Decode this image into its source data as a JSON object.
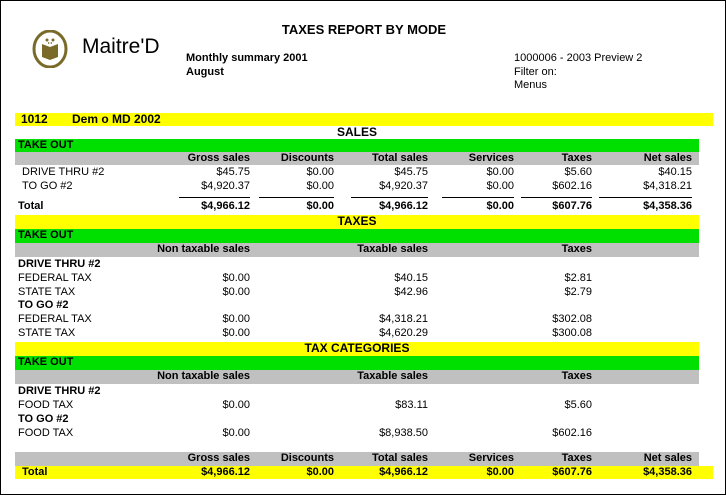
{
  "report": {
    "title": "TAXES REPORT BY MODE",
    "logo_text": "Maitre'D",
    "subtitle": "Monthly summary 2001",
    "period": "August",
    "ref": "1000006 - 2003  Preview 2",
    "filter_label": "Filter on:",
    "filter_value": "Menus",
    "store_id": "1012",
    "store_name": "Dem o MD 2002"
  },
  "colors": {
    "section": "#ffff00",
    "mode": "#00e000",
    "header": "#c0c0c0",
    "logo": "#7a6a2a"
  },
  "sales": {
    "title": "SALES",
    "mode": "TAKE OUT",
    "columns": [
      "Gross sales",
      "Discounts",
      "Total sales",
      "Services",
      "Taxes",
      "Net sales"
    ],
    "rows": [
      {
        "name": "DRIVE THRU #2",
        "values": [
          "$45.75",
          "$0.00",
          "$45.75",
          "$0.00",
          "$5.60",
          "$40.15"
        ]
      },
      {
        "name": "TO GO #2",
        "values": [
          "$4,920.37",
          "$0.00",
          "$4,920.37",
          "$0.00",
          "$602.16",
          "$4,318.21"
        ]
      }
    ],
    "total": {
      "label": "Total",
      "values": [
        "$4,966.12",
        "$0.00",
        "$4,966.12",
        "$0.00",
        "$607.76",
        "$4,358.36"
      ]
    }
  },
  "taxes": {
    "title": "TAXES",
    "mode": "TAKE OUT",
    "columns": [
      "Non taxable sales",
      "Taxable sales",
      "Taxes"
    ],
    "groups": [
      {
        "name": "DRIVE THRU #2",
        "rows": [
          {
            "name": "FEDERAL TAX",
            "values": [
              "$0.00",
              "$40.15",
              "$2.81"
            ]
          },
          {
            "name": "STATE TAX",
            "values": [
              "$0.00",
              "$42.96",
              "$2.79"
            ]
          }
        ]
      },
      {
        "name": "TO GO #2",
        "rows": [
          {
            "name": "FEDERAL TAX",
            "values": [
              "$0.00",
              "$4,318.21",
              "$302.08"
            ]
          },
          {
            "name": "STATE TAX",
            "values": [
              "$0.00",
              "$4,620.29",
              "$300.08"
            ]
          }
        ]
      }
    ]
  },
  "tax_categories": {
    "title": "TAX CATEGORIES",
    "mode": "TAKE OUT",
    "columns": [
      "Non taxable sales",
      "Taxable sales",
      "Taxes"
    ],
    "groups": [
      {
        "name": "DRIVE THRU #2",
        "rows": [
          {
            "name": "FOOD TAX",
            "values": [
              "$0.00",
              "$83.11",
              "$5.60"
            ]
          }
        ]
      },
      {
        "name": "TO GO #2",
        "rows": [
          {
            "name": "FOOD TAX",
            "values": [
              "$0.00",
              "$8,938.50",
              "$602.16"
            ]
          }
        ]
      }
    ]
  },
  "grand_total": {
    "columns": [
      "Gross sales",
      "Discounts",
      "Total sales",
      "Services",
      "Taxes",
      "Net sales"
    ],
    "label": "Total",
    "values": [
      "$4,966.12",
      "$0.00",
      "$4,966.12",
      "$0.00",
      "$607.76",
      "$4,358.36"
    ]
  }
}
